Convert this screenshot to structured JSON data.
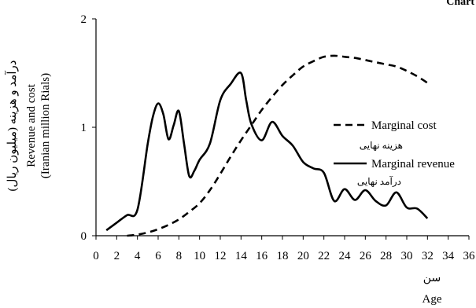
{
  "corner_text": "Chart",
  "chart_data": {
    "type": "line",
    "x_ticks": [
      0,
      2,
      4,
      6,
      8,
      10,
      12,
      14,
      16,
      18,
      20,
      22,
      24,
      26,
      28,
      30,
      32,
      34,
      36
    ],
    "y_ticks": [
      0,
      1,
      2
    ],
    "xlim": [
      0,
      36
    ],
    "ylim": [
      0,
      2
    ],
    "xlabel_fa": "سن",
    "xlabel_en": "Age",
    "ylabel_fa": "درآمد و هزینه (میلیون ریال)",
    "ylabel_en_1": "Revenue and cost",
    "ylabel_en_2": "(Iranian million Rials)",
    "grid": false,
    "legend_position": "right",
    "series": [
      {
        "name": "Marginal cost",
        "name_fa": "هزینه نهایی",
        "style": "dashed",
        "color": "#000000",
        "x": [
          3,
          4,
          5,
          6,
          7,
          8,
          9,
          10,
          11,
          12,
          13,
          14,
          15,
          16,
          17,
          18,
          19,
          20,
          21,
          22,
          23,
          24,
          25,
          26,
          27,
          28,
          29,
          30,
          31,
          32
        ],
        "y": [
          0.0,
          0.01,
          0.03,
          0.06,
          0.1,
          0.15,
          0.22,
          0.3,
          0.42,
          0.57,
          0.73,
          0.88,
          1.02,
          1.16,
          1.28,
          1.39,
          1.48,
          1.56,
          1.61,
          1.65,
          1.66,
          1.65,
          1.64,
          1.62,
          1.6,
          1.58,
          1.56,
          1.52,
          1.47,
          1.41
        ]
      },
      {
        "name": "Marginal revenue",
        "name_fa": "درآمد نهایی",
        "style": "solid",
        "color": "#000000",
        "x": [
          1,
          2,
          3,
          4,
          5,
          5.5,
          6,
          6.5,
          7,
          7.5,
          8,
          8.5,
          9,
          9.5,
          10,
          11,
          12,
          13,
          14,
          14.5,
          15,
          16,
          17,
          18,
          19,
          20,
          21,
          22,
          23,
          24,
          25,
          26,
          27,
          28,
          29,
          30,
          31,
          32
        ],
        "y": [
          0.05,
          0.12,
          0.19,
          0.24,
          0.85,
          1.1,
          1.22,
          1.12,
          0.89,
          1.02,
          1.15,
          0.85,
          0.55,
          0.6,
          0.7,
          0.85,
          1.25,
          1.4,
          1.5,
          1.25,
          1.03,
          0.88,
          1.05,
          0.92,
          0.83,
          0.68,
          0.62,
          0.58,
          0.32,
          0.43,
          0.33,
          0.42,
          0.32,
          0.28,
          0.4,
          0.26,
          0.25,
          0.16
        ]
      }
    ]
  }
}
